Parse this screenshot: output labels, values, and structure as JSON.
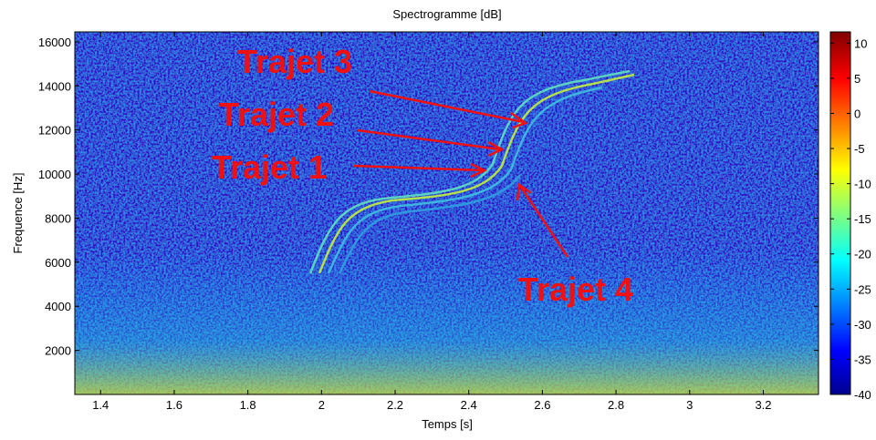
{
  "chart_data": {
    "type": "spectrogram",
    "title": "Spectrogramme [dB]",
    "x_label": "Temps [s]",
    "y_label": "Frequence [Hz]",
    "xlim": [
      1.33,
      3.35
    ],
    "xticks": [
      1.4,
      1.6,
      1.8,
      2,
      2.2,
      2.4,
      2.6,
      2.8,
      3,
      3.2
    ],
    "ylim": [
      0,
      16450
    ],
    "yticks": [
      2000,
      4000,
      6000,
      8000,
      10000,
      12000,
      14000,
      16000
    ],
    "clim": [
      -40,
      11.6
    ],
    "cticks": [
      10,
      5,
      0,
      -5,
      -10,
      -15,
      -20,
      -25,
      -30,
      -35,
      -40
    ],
    "colormap": "jet",
    "annotations": [
      "Trajet 3",
      "Trajet 2",
      "Trajet 1",
      "Trajet 4"
    ]
  }
}
